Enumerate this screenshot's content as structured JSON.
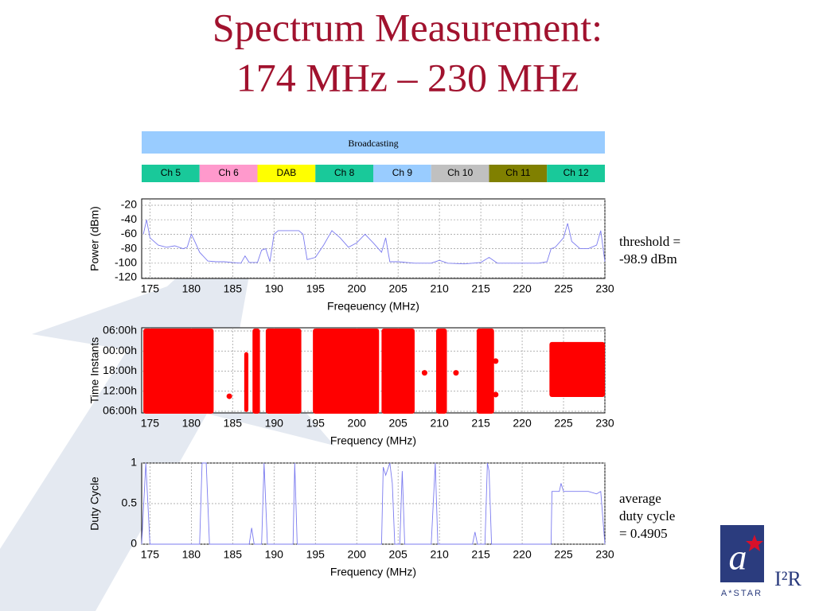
{
  "title": [
    "Spectrum Measurement:",
    "174 MHz – 230 MHz"
  ],
  "bands": {
    "broadcasting": {
      "label": "Broadcasting",
      "range": [
        174,
        230
      ],
      "color": "#99ccff"
    },
    "channels": [
      {
        "label": "Ch 5",
        "range": [
          174,
          181
        ],
        "color": "#19c99a"
      },
      {
        "label": "Ch 6",
        "range": [
          181,
          188
        ],
        "color": "#ff99cc"
      },
      {
        "label": "DAB",
        "range": [
          188,
          195
        ],
        "color": "#ffff00"
      },
      {
        "label": "Ch 8",
        "range": [
          195,
          202
        ],
        "color": "#19c99a"
      },
      {
        "label": "Ch 9",
        "range": [
          202,
          209
        ],
        "color": "#99ccff"
      },
      {
        "label": "Ch 10",
        "range": [
          209,
          216
        ],
        "color": "#c0c0c0"
      },
      {
        "label": "Ch 11",
        "range": [
          216,
          223
        ],
        "color": "#808000"
      },
      {
        "label": "Ch 12",
        "range": [
          223,
          230
        ],
        "color": "#19c99a"
      }
    ]
  },
  "chart_data": [
    {
      "type": "line",
      "xlabel": "Freqeuency (MHz)",
      "ylabel": "Power (dBm)",
      "color": "#7b7bef",
      "grid": true,
      "xlim": [
        174,
        230
      ],
      "xticks": [
        175,
        180,
        185,
        190,
        195,
        200,
        205,
        210,
        215,
        220,
        225,
        230
      ],
      "ylim": [
        -120,
        -20
      ],
      "yticks": [
        -120,
        -100,
        -80,
        -60,
        -40,
        -20
      ],
      "x": [
        174.2,
        174.6,
        175,
        176,
        177,
        178,
        179,
        179.5,
        180,
        180.5,
        181,
        182,
        183,
        184,
        185,
        186,
        186.5,
        187,
        188,
        188.5,
        189,
        189.5,
        190,
        190.5,
        193,
        193.5,
        194,
        195,
        196,
        197,
        198,
        199,
        200,
        201,
        202,
        203,
        203.5,
        204,
        205,
        207,
        209,
        210,
        211,
        213,
        215,
        216,
        217,
        220,
        222,
        223,
        223.5,
        224,
        225,
        225.5,
        226,
        227,
        228,
        229,
        229.5,
        230
      ],
      "values": [
        -60,
        -40,
        -65,
        -75,
        -78,
        -76,
        -80,
        -78,
        -60,
        -72,
        -85,
        -97,
        -98,
        -98,
        -99,
        -100,
        -90,
        -99,
        -99,
        -82,
        -80,
        -98,
        -60,
        -55,
        -55,
        -60,
        -95,
        -92,
        -75,
        -55,
        -65,
        -78,
        -72,
        -60,
        -72,
        -85,
        -65,
        -98,
        -98,
        -100,
        -100,
        -96,
        -100,
        -101,
        -99,
        -92,
        -100,
        -100,
        -100,
        -98,
        -80,
        -78,
        -65,
        -45,
        -70,
        -80,
        -80,
        -75,
        -55,
        -98
      ],
      "annotation": [
        "threshold =",
        "-98.9 dBm"
      ]
    },
    {
      "type": "scatter",
      "xlabel": "Frequency (MHz)",
      "ylabel": "Time Instants",
      "color": "#ff0000",
      "grid": true,
      "xlim": [
        174,
        230
      ],
      "xticks": [
        175,
        180,
        185,
        190,
        195,
        200,
        205,
        210,
        215,
        220,
        225,
        230
      ],
      "ylim": [
        0,
        24
      ],
      "yticks": [
        {
          "value": 0,
          "label": "06:00h"
        },
        {
          "value": 6,
          "label": "12:00h"
        },
        {
          "value": 12,
          "label": "18:00h"
        },
        {
          "value": 18,
          "label": "00:00h"
        },
        {
          "value": 24,
          "label": "06:00h"
        }
      ],
      "regions": [
        {
          "x": [
            174.2,
            182.7
          ],
          "y": [
            0,
            24
          ]
        },
        {
          "x": [
            186.4,
            186.9
          ],
          "y": [
            0.5,
            17
          ]
        },
        {
          "x": [
            187.4,
            188.3
          ],
          "y": [
            0,
            24
          ]
        },
        {
          "x": [
            189.0,
            193.3
          ],
          "y": [
            0,
            24
          ]
        },
        {
          "x": [
            194.7,
            202.7
          ],
          "y": [
            0,
            24
          ]
        },
        {
          "x": [
            203.0,
            207.0
          ],
          "y": [
            0,
            24
          ]
        },
        {
          "x": [
            209.6,
            210.9
          ],
          "y": [
            0,
            24
          ]
        },
        {
          "x": [
            214.5,
            216.6
          ],
          "y": [
            0,
            24
          ]
        },
        {
          "x": [
            223.3,
            230
          ],
          "y": [
            5,
            20
          ]
        }
      ],
      "x": [
        184.6,
        208.2,
        210.2,
        212,
        216.8,
        216.8
      ],
      "values": [
        4.5,
        11.5,
        11.5,
        11.5,
        5,
        15
      ]
    },
    {
      "type": "line",
      "xlabel": "Frequency (MHz)",
      "ylabel": "Duty Cycle",
      "color": "#7b7bef",
      "grid": true,
      "xlim": [
        174,
        230
      ],
      "xticks": [
        175,
        180,
        185,
        190,
        195,
        200,
        205,
        210,
        215,
        220,
        225,
        230
      ],
      "ylim": [
        0,
        1
      ],
      "yticks": [
        0,
        0.5,
        1
      ],
      "x": [
        174,
        174.5,
        175,
        181,
        181.3,
        181.8,
        182.2,
        187,
        187.3,
        187.6,
        188.5,
        188.8,
        189.2,
        192.3,
        192.5,
        192.8,
        203,
        203.2,
        203.5,
        204,
        204.3,
        204.6,
        205.2,
        205.5,
        205.8,
        209,
        209.5,
        209.8,
        214,
        214.3,
        214.6,
        215.5,
        215.8,
        216,
        216.3,
        223.5,
        223.6,
        224.5,
        224.7,
        225,
        228,
        229,
        229.5,
        230
      ],
      "values": [
        0,
        1,
        0,
        0,
        1,
        1,
        0,
        0,
        0.2,
        0,
        0,
        1,
        0,
        0,
        1,
        0,
        0,
        0.95,
        0.85,
        1,
        0.75,
        0,
        0,
        0.9,
        0,
        0,
        1,
        0,
        0,
        0.15,
        0,
        0,
        1,
        0.9,
        0,
        0,
        0.65,
        0.65,
        0.75,
        0.65,
        0.65,
        0.62,
        0.65,
        0
      ],
      "annotation": [
        "average",
        "duty cycle",
        "= 0.4905"
      ]
    }
  ],
  "logo": {
    "brand": "A*STAR",
    "institute": "I²R"
  }
}
